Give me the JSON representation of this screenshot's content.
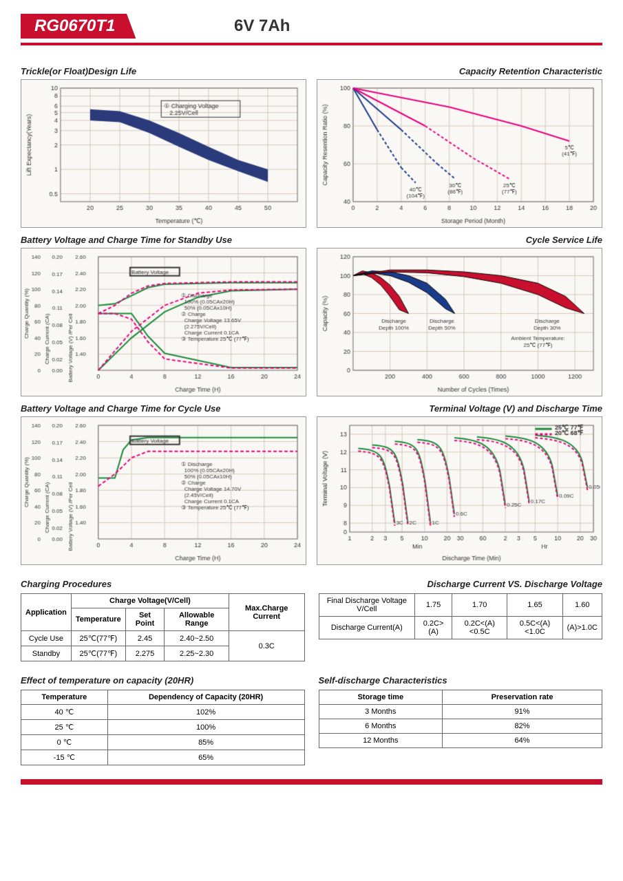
{
  "header": {
    "model": "RG0670T1",
    "spec": "6V  7Ah"
  },
  "charts": {
    "trickle": {
      "title": "Trickle(or Float)Design Life",
      "xlabel": "Temperature (℃)",
      "ylabel": "Lift Expectancy(Years)",
      "xlim": [
        15,
        55
      ],
      "xticks": [
        20,
        25,
        30,
        35,
        40,
        45,
        50
      ],
      "ylim": [
        0.3,
        10
      ],
      "yticks": [
        0.5,
        1,
        2,
        3,
        4,
        5,
        6,
        8,
        10
      ],
      "yscale": "log",
      "band": {
        "x": [
          20,
          25,
          30,
          35,
          40,
          45,
          50
        ],
        "y_upper": [
          5.5,
          5.2,
          4.0,
          2.8,
          1.9,
          1.3,
          1.0
        ],
        "y_lower": [
          4.0,
          3.8,
          2.8,
          1.9,
          1.3,
          0.95,
          0.7
        ],
        "color": "#2a3a7a"
      },
      "annotation": "① Charging Voltage 2.25V/Cell",
      "bg": "#faf8f5",
      "grid": "#d4c9b8"
    },
    "retention": {
      "title": "Capacity Retention Characteristic",
      "xlabel": "Storage Period (Month)",
      "ylabel": "Capacity Resention Ratio (%)",
      "xlim": [
        0,
        20
      ],
      "xticks": [
        0,
        2,
        4,
        6,
        8,
        10,
        12,
        14,
        16,
        18,
        20
      ],
      "ylim": [
        40,
        100
      ],
      "yticks": [
        40,
        60,
        80,
        100
      ],
      "lines": [
        {
          "label": "40℃ (104℉)",
          "color": "#1a3a8a",
          "x": [
            0,
            2,
            4,
            5.2
          ],
          "y": [
            100,
            78,
            58,
            50
          ],
          "dash_from": 4
        },
        {
          "label": "30℃ (86℉)",
          "color": "#1a3a8a",
          "x": [
            0,
            4,
            7,
            8.5
          ],
          "y": [
            100,
            78,
            60,
            52
          ],
          "dash_from": 7
        },
        {
          "label": "25℃ (77℉)",
          "color": "#e6007e",
          "x": [
            0,
            6,
            10,
            13
          ],
          "y": [
            100,
            80,
            63,
            52
          ],
          "dash_from": 10
        },
        {
          "label": "5℃ (41℉)",
          "color": "#e6007e",
          "x": [
            0,
            8,
            14,
            18
          ],
          "y": [
            100,
            90,
            80,
            72
          ]
        }
      ],
      "bg": "#faf8f5",
      "grid": "#d4c9b8"
    },
    "standby": {
      "title": "Battery Voltage and Charge Time for Standby Use",
      "xlabel": "Charge Time (H)",
      "y1label": "Charge Quantity (%)",
      "y2label": "Charge Current (CA)",
      "y3label": "Battery Voltage (V) /Per Cell",
      "xlim": [
        0,
        24
      ],
      "xticks": [
        0,
        4,
        8,
        12,
        16,
        20,
        24
      ],
      "y1lim": [
        0,
        140
      ],
      "y1ticks": [
        0,
        20,
        40,
        60,
        80,
        100,
        120,
        140
      ],
      "y2lim": [
        0,
        0.2
      ],
      "y2ticks": [
        0,
        0.02,
        0.05,
        0.08,
        0.11,
        0.14,
        0.17,
        0.2
      ],
      "y3lim": [
        1.2,
        2.6
      ],
      "y3ticks": [
        1.4,
        1.6,
        1.8,
        2.0,
        2.2,
        2.4,
        2.6
      ],
      "solid": {
        "color": "#1a8a3a",
        "bv": {
          "x": [
            0,
            2,
            4,
            6,
            8,
            16,
            24
          ],
          "y": [
            2.0,
            2.02,
            2.12,
            2.22,
            2.26,
            2.28,
            2.28
          ]
        },
        "cq": {
          "x": [
            0,
            4,
            8,
            12,
            16,
            24
          ],
          "y": [
            0,
            40,
            72,
            90,
            98,
            100
          ]
        },
        "cc": {
          "x": [
            0,
            2,
            4,
            6,
            8,
            16,
            24
          ],
          "y": [
            0.1,
            0.1,
            0.1,
            0.06,
            0.03,
            0.005,
            0.005
          ]
        }
      },
      "dashed": {
        "color": "#e6007e",
        "bv": {
          "x": [
            0,
            2,
            4,
            6,
            8,
            16,
            24
          ],
          "y": [
            1.9,
            2.0,
            2.15,
            2.24,
            2.27,
            2.29,
            2.29
          ]
        },
        "cq": {
          "x": [
            0,
            4,
            8,
            12,
            16,
            24
          ],
          "y": [
            0,
            48,
            80,
            95,
            99,
            100
          ]
        },
        "cc": {
          "x": [
            0,
            2,
            4,
            6,
            8,
            16,
            24
          ],
          "y": [
            0.1,
            0.1,
            0.09,
            0.05,
            0.02,
            0.004,
            0.004
          ]
        }
      },
      "annotations": [
        "Battery Voltage",
        "Charge Quantity (to-Discharge Quantity) Ratio",
        "① Discharge",
        "  100% (0.05CAx20H)",
        "  50% (0.05CAx10H)",
        "② Charge",
        "  Charge Voltage 13.65V",
        "  (2.275V/Cell)",
        "  Charge Current 0.1CA",
        "③ Temperature 25℃ (77℉)"
      ],
      "bg": "#faf8f5",
      "grid": "#d4c9b8"
    },
    "cycle_life": {
      "title": "Cycle Service Life",
      "xlabel": "Number of Cycles (Times)",
      "ylabel": "Capacity (%)",
      "xlim": [
        0,
        1300
      ],
      "xticks": [
        200,
        400,
        600,
        800,
        1000,
        1200
      ],
      "ylim": [
        0,
        120
      ],
      "yticks": [
        0,
        20,
        40,
        60,
        80,
        100,
        120
      ],
      "bands": [
        {
          "label": "Discharge Depth 100%",
          "color": "#c8102e",
          "x": [
            0,
            50,
            100,
            150,
            200,
            250,
            300
          ],
          "y_upper": [
            100,
            105,
            103,
            98,
            90,
            78,
            60
          ],
          "y_lower": [
            100,
            102,
            98,
            90,
            78,
            64,
            60
          ]
        },
        {
          "label": "Discharge Depth 50%",
          "color": "#1a3a8a",
          "x": [
            0,
            100,
            200,
            300,
            400,
            500,
            550
          ],
          "y_upper": [
            100,
            105,
            104,
            100,
            92,
            75,
            60
          ],
          "y_lower": [
            100,
            103,
            100,
            93,
            82,
            65,
            60
          ]
        },
        {
          "label": "Discharge Depth 30%",
          "color": "#c8102e",
          "x": [
            0,
            200,
            400,
            600,
            800,
            1000,
            1150,
            1250
          ],
          "y_upper": [
            100,
            106,
            106,
            104,
            100,
            92,
            78,
            60
          ],
          "y_lower": [
            100,
            104,
            103,
            99,
            92,
            80,
            66,
            60
          ]
        }
      ],
      "annotation": "Ambient Temperature: 25℃ (77℉)",
      "bg": "#faf8f5",
      "grid": "#d4c9b8"
    },
    "cycle_charge": {
      "title": "Battery Voltage and Charge Time for Cycle Use",
      "xlabel": "Charge Time (H)",
      "annotations": [
        "Battery Voltage",
        "Charge Quantity (to-Discharge Quantity) Ratio",
        "① Discharge",
        "  100% (0.05CAx20H)",
        "  50% (0.05CAx10H)",
        "② Charge",
        "  Charge Voltage 14.70V",
        "  (2.45V/Cell)",
        "  Charge Current 0.1CA",
        "③ Temperature 25℃ (77℉)"
      ],
      "solid": {
        "color": "#1a8a3a",
        "bv": {
          "x": [
            0,
            2,
            3,
            4,
            6,
            10,
            24
          ],
          "y": [
            1.95,
            1.95,
            2.3,
            2.42,
            2.45,
            2.45,
            2.45
          ]
        }
      },
      "dashed": {
        "color": "#e6007e",
        "bv": {
          "x": [
            0,
            2,
            4,
            6,
            10,
            24
          ],
          "y": [
            1.85,
            2.0,
            2.2,
            2.28,
            2.28,
            2.28
          ]
        }
      },
      "bg": "#faf8f5",
      "grid": "#d4c9b8"
    },
    "discharge": {
      "title": "Terminal Voltage (V) and Discharge Time",
      "xlabel": "Discharge Time (Min)",
      "ylabel": "Terminal Voltage (V)",
      "xscale": "log",
      "xlim": [
        1,
        1800
      ],
      "xticks_min": [
        1,
        2,
        3,
        5,
        10,
        20,
        30,
        60
      ],
      "xticks_hr": [
        2,
        3,
        5,
        10,
        20,
        30
      ],
      "ylim": [
        0,
        13.5
      ],
      "yticks": [
        0,
        8,
        9,
        10,
        11,
        12,
        13
      ],
      "solid_color": "#1a8a3a",
      "dash_color": "#e6007e",
      "curves": [
        "3C",
        "2C",
        "1C",
        "0.6C",
        "0.25C",
        "0.17C",
        "0.09C",
        "0.05C"
      ],
      "legend": [
        "25℃ 77℉",
        "20℃ 68℉"
      ],
      "bg": "#faf8f5",
      "grid": "#d4c9b8"
    }
  },
  "tables": {
    "charging": {
      "title": "Charging Procedures",
      "headers": {
        "app": "Application",
        "cv": "Charge Voltage(V/Cell)",
        "temp": "Temperature",
        "sp": "Set Point",
        "ar": "Allowable Range",
        "max": "Max.Charge Current"
      },
      "rows": [
        {
          "app": "Cycle Use",
          "temp": "25℃(77℉)",
          "sp": "2.45",
          "ar": "2.40~2.50"
        },
        {
          "app": "Standby",
          "temp": "25℃(77℉)",
          "sp": "2.275",
          "ar": "2.25~2.30"
        }
      ],
      "max_current": "0.3C"
    },
    "discharge_v": {
      "title": "Discharge Current VS. Discharge Voltage",
      "h1": "Final Discharge Voltage V/Cell",
      "h2": "Discharge Current(A)",
      "volts": [
        "1.75",
        "1.70",
        "1.65",
        "1.60"
      ],
      "currents": [
        "0.2C>(A)",
        "0.2C<(A)<0.5C",
        "0.5C<(A)<1.0C",
        "(A)>1.0C"
      ]
    },
    "temp_effect": {
      "title": "Effect of temperature on capacity (20HR)",
      "h1": "Temperature",
      "h2": "Dependency of Capacity (20HR)",
      "rows": [
        [
          "40 ℃",
          "102%"
        ],
        [
          "25 ℃",
          "100%"
        ],
        [
          "0 ℃",
          "85%"
        ],
        [
          "-15 ℃",
          "65%"
        ]
      ]
    },
    "self_discharge": {
      "title": "Self-discharge Characteristics",
      "h1": "Storage time",
      "h2": "Preservation rate",
      "rows": [
        [
          "3 Months",
          "91%"
        ],
        [
          "6 Months",
          "82%"
        ],
        [
          "12 Months",
          "64%"
        ]
      ]
    }
  }
}
